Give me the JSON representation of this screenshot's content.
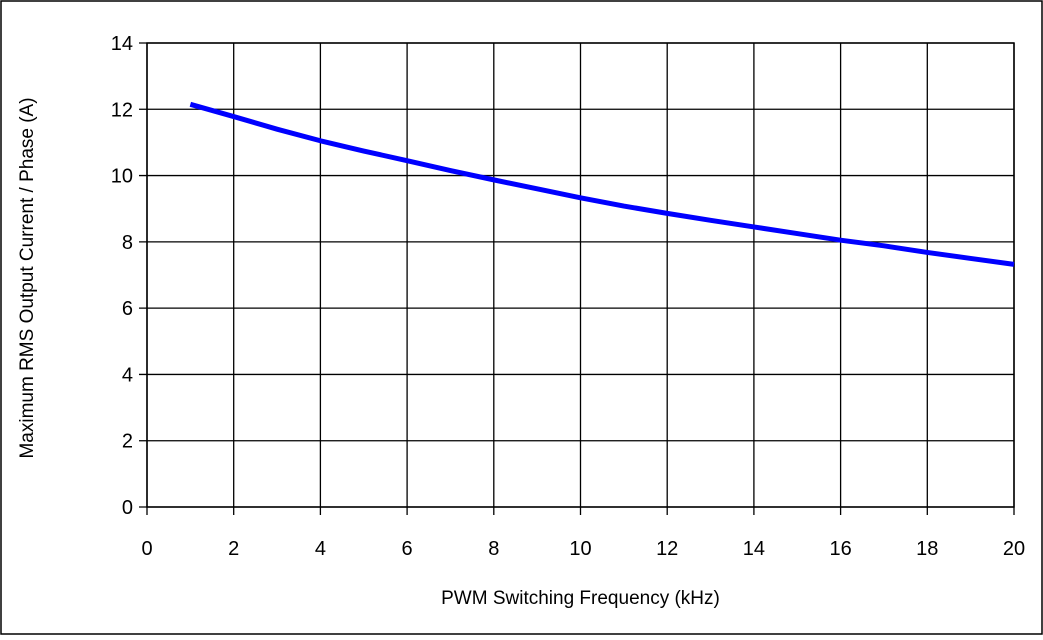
{
  "chart_data": {
    "type": "line",
    "title": "",
    "xlabel": "PWM Switching Frequency (kHz)",
    "ylabel": "Maximum RMS Output Current / Phase (A)",
    "xlim": [
      0,
      20
    ],
    "ylim": [
      0,
      14
    ],
    "x_ticks": [
      "0",
      "2",
      "4",
      "6",
      "8",
      "10",
      "12",
      "14",
      "16",
      "18",
      "20"
    ],
    "y_ticks": [
      "0",
      "2",
      "4",
      "6",
      "8",
      "10",
      "12",
      "14"
    ],
    "grid": true,
    "legend": "none",
    "series": [
      {
        "color": "#0000ff",
        "x": [
          1,
          2,
          3,
          4,
          5,
          6,
          7,
          8,
          9,
          10,
          11,
          12,
          13,
          14,
          15,
          16,
          17,
          18,
          19,
          20
        ],
        "y": [
          12.15,
          11.78,
          11.4,
          11.05,
          10.74,
          10.45,
          10.15,
          9.87,
          9.6,
          9.33,
          9.08,
          8.86,
          8.65,
          8.45,
          8.25,
          8.05,
          7.88,
          7.68,
          7.5,
          7.32
        ]
      }
    ]
  }
}
